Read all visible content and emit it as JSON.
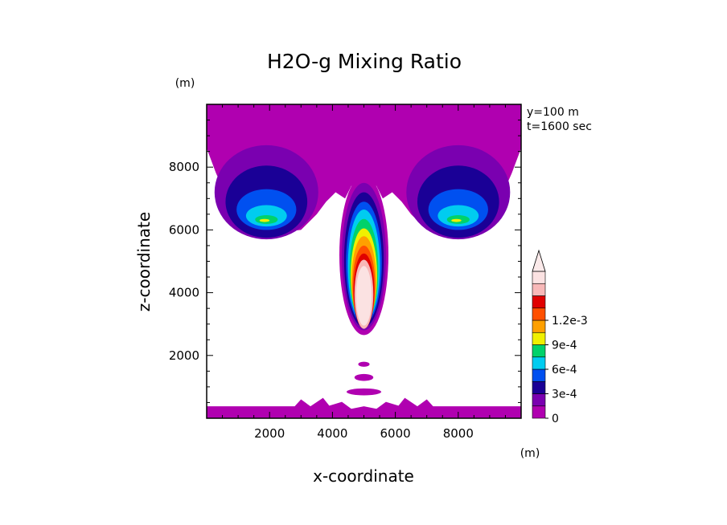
{
  "chart_data": {
    "type": "heatmap",
    "title": "H2O-g Mixing Ratio",
    "xlabel": "x-coordinate",
    "ylabel": "z-coordinate",
    "x_unit": "(m)",
    "y_unit": "(m)",
    "annotations": [
      "y=100 m",
      "t=1600 sec"
    ],
    "xlim": [
      0,
      10000
    ],
    "ylim": [
      0,
      10000
    ],
    "xticks": [
      2000,
      4000,
      6000,
      8000
    ],
    "xtick_labels": [
      "2000",
      "4000",
      "6000",
      "8000"
    ],
    "yticks": [
      2000,
      4000,
      6000,
      8000
    ],
    "ytick_labels": [
      "2000",
      "4000",
      "6000",
      "8000"
    ],
    "colorbar": {
      "levels": [
        0,
        0.00015,
        0.0003,
        0.00045,
        0.0006,
        0.00075,
        0.0009,
        0.00105,
        0.0012
      ],
      "tick_labels": [
        "0",
        "3e-4",
        "6e-4",
        "9e-4",
        "1.2e-3"
      ],
      "tick_values": [
        0,
        0.0003,
        0.0006,
        0.0009,
        0.0012
      ],
      "colors": [
        "#b000b0",
        "#7a00b0",
        "#1a0096",
        "#0050f0",
        "#00ccf0",
        "#00d26a",
        "#f0f000",
        "#ffa000",
        "#ff5000",
        "#e00000",
        "#f8b8b8",
        "#fbe2e2"
      ]
    },
    "features": [
      {
        "name": "upper-layer",
        "z_range": [
          9000,
          10000
        ],
        "peak": 0.0001
      },
      {
        "name": "left-anvil",
        "x_center": 2000,
        "z_center": 6600,
        "peak": 0.00075
      },
      {
        "name": "right-anvil",
        "x_center": 8000,
        "z_center": 6600,
        "peak": 0.00075
      },
      {
        "name": "central-column",
        "x_center": 5000,
        "z_range": [
          2700,
          8000
        ],
        "peak": 0.0013
      },
      {
        "name": "surface-layer",
        "z_range": [
          0,
          400
        ],
        "peak": 5e-05
      }
    ]
  }
}
